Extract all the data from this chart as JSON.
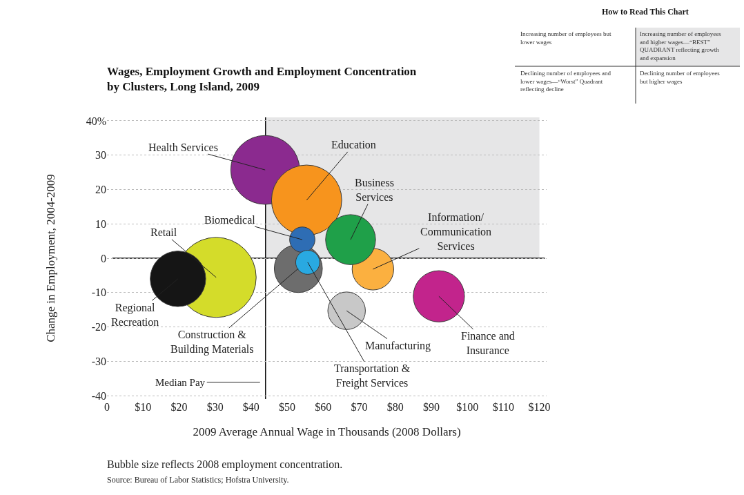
{
  "chart_data": [
    {
      "type": "bubble",
      "title": "Wages, Employment Growth and Employment Concentration\nby Clusters, Long Island, 2009",
      "xlabel": "2009 Average Annual Wage in Thousands (2008 Dollars)",
      "ylabel": "Change in Employment, 2004-2009",
      "annotations": [
        "Bubble size reflects 2008 employment concentration.",
        "Source: Bureau of Labor Statistics; Hofstra University."
      ],
      "series": [
        {
          "name": "Retail",
          "color": "#d4dc2a",
          "x": [
            30.3
          ],
          "values": [
            -5.6
          ],
          "sizes": [
            1
          ]
        },
        {
          "name": "Regional\nRecreation",
          "color": "#151515",
          "x": [
            19.7
          ],
          "values": [
            -6.0
          ],
          "sizes": [
            0.48
          ]
        },
        {
          "name": "Health Services",
          "color": "#8b2a8f",
          "x": [
            43.9
          ],
          "values": [
            25.7
          ],
          "sizes": [
            0.74
          ]
        },
        {
          "name": "Education",
          "color": "#f7941d",
          "x": [
            55.4
          ],
          "values": [
            16.9
          ],
          "sizes": [
            0.77
          ]
        },
        {
          "name": "Construction &\nBuilding Materials",
          "color": "#6d6d6d",
          "x": [
            53.1
          ],
          "values": [
            -3.0
          ],
          "sizes": [
            0.36
          ]
        },
        {
          "name": "Information/\nCommunication\nServices",
          "color": "#fbb040",
          "x": [
            73.8
          ],
          "values": [
            -3.2
          ],
          "sizes": [
            0.27
          ]
        },
        {
          "name": "Business\nServices",
          "color": "#1fa049",
          "x": [
            67.6
          ],
          "values": [
            5.4
          ],
          "sizes": [
            0.39
          ]
        },
        {
          "name": "Biomedical",
          "color": "#2e6db4",
          "x": [
            54.2
          ],
          "values": [
            5.4
          ],
          "sizes": [
            0.1
          ]
        },
        {
          "name": "Transportation &\nFreight Services",
          "color": "#29a9e1",
          "x": [
            55.7
          ],
          "values": [
            -1.2
          ],
          "sizes": [
            0.09
          ]
        },
        {
          "name": "Manufacturing",
          "color": "#c8c8c8",
          "x": [
            66.5
          ],
          "values": [
            -15.3
          ],
          "sizes": [
            0.22
          ]
        },
        {
          "name": "Finance and\nInsurance",
          "color": "#c2248c",
          "x": [
            92.1
          ],
          "values": [
            -11.1
          ],
          "sizes": [
            0.41
          ]
        }
      ],
      "xlim": [
        0,
        122
      ],
      "ylim": [
        -41,
        41
      ],
      "xticks": [
        0,
        {
          "value": 10,
          "label": "$10"
        },
        {
          "value": 20,
          "label": "$20"
        },
        {
          "value": 30,
          "label": "$30"
        },
        {
          "value": 40,
          "label": "$40"
        },
        {
          "value": 50,
          "label": "$50"
        },
        {
          "value": 60,
          "label": "$60"
        },
        {
          "value": 70,
          "label": "$70"
        },
        {
          "value": 80,
          "label": "$80"
        },
        {
          "value": 90,
          "label": "$90"
        },
        {
          "value": 100,
          "label": "$100"
        },
        {
          "value": 110,
          "label": "$110"
        },
        {
          "value": 120,
          "label": "$120"
        }
      ],
      "yticks": [
        {
          "value": 40,
          "label": "40%"
        },
        30,
        20,
        10,
        0,
        -10,
        -20,
        -30,
        -40
      ],
      "grid": "y",
      "ref_lines": [
        {
          "axis": "x",
          "value": 44,
          "label": "Median Pay",
          "color": "#111111"
        },
        {
          "axis": "y",
          "value": 0,
          "color": "#111111"
        }
      ],
      "bands": [
        {
          "axis": "x",
          "from": 44,
          "to": 120,
          "color": "#e6e6e7"
        }
      ]
    },
    {
      "type": "other",
      "title": "How to Read This Chart",
      "annotations": [
        "Increasing number of employees but\nlower wages",
        "Increasing number of employees\nand higher wages—“BEST”\nQUADRANT reflecting growth\nand expansion",
        "Declining number of employees and\nlower wages—“Worst” Quadrant\nreflecting decline",
        "Declining number of employees\nbut higher wages"
      ]
    }
  ]
}
